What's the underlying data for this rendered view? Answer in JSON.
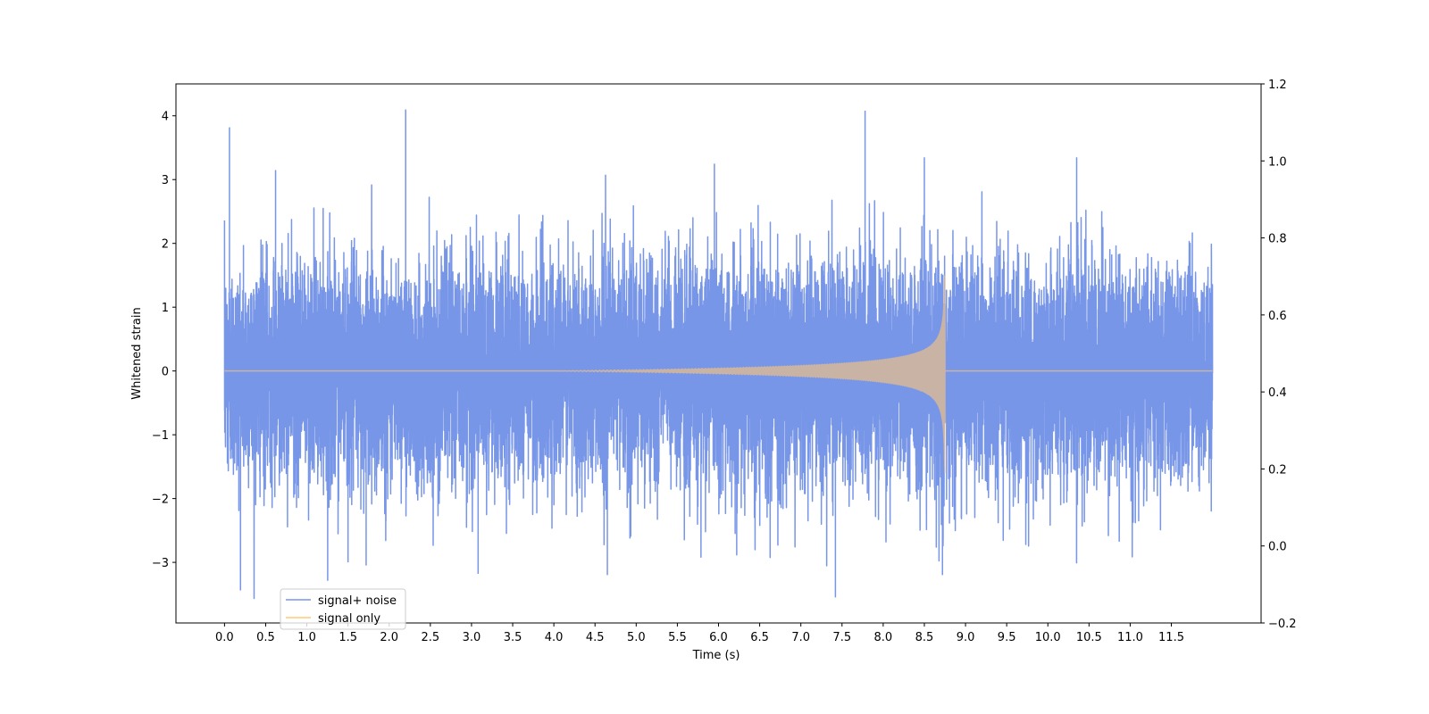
{
  "chart_data": {
    "type": "line",
    "title": "",
    "xlabel": "Time (s)",
    "ylabel": "Whitened strain",
    "xlim": [
      -0.59,
      12.59
    ],
    "ylim": [
      -3.95,
      4.5
    ],
    "y2lim": [
      -0.2,
      1.2
    ],
    "x_ticks": [
      "0.0",
      "0.5",
      "1.0",
      "1.5",
      "2.0",
      "2.5",
      "3.0",
      "3.5",
      "4.0",
      "4.5",
      "5.0",
      "5.5",
      "6.0",
      "6.5",
      "7.0",
      "7.5",
      "8.0",
      "8.5",
      "9.0",
      "9.5",
      "10.0",
      "10.5",
      "11.0",
      "11.5"
    ],
    "y_ticks": [
      "−3",
      "−2",
      "−1",
      "0",
      "1",
      "2",
      "3",
      "4"
    ],
    "y2_ticks": [
      "−0.2",
      "0.0",
      "0.2",
      "0.4",
      "0.6",
      "0.8",
      "1.0",
      "1.2"
    ],
    "grid": false,
    "legend_position": "lower-left",
    "series": [
      {
        "name": "signal+ noise",
        "color": "#7896e8",
        "x_range": [
          0.0,
          12.0
        ],
        "noise_std": 0.85,
        "extremes": [
          {
            "x": 0.06,
            "y": 3.82
          },
          {
            "x": 0.62,
            "y": 3.15
          },
          {
            "x": 1.5,
            "y": -3.0
          },
          {
            "x": 1.72,
            "y": -3.05
          },
          {
            "x": 2.2,
            "y": 4.1
          },
          {
            "x": 3.08,
            "y": -3.18
          },
          {
            "x": 4.65,
            "y": -3.2
          },
          {
            "x": 5.95,
            "y": 3.25
          },
          {
            "x": 7.42,
            "y": -3.55
          },
          {
            "x": 7.78,
            "y": 4.08
          },
          {
            "x": 8.5,
            "y": 3.35
          },
          {
            "x": 8.72,
            "y": -3.2
          },
          {
            "x": 10.35,
            "y": 3.35
          }
        ]
      },
      {
        "name": "signal only",
        "color": "#ffc777",
        "x_range": [
          0.0,
          12.0
        ],
        "chirp_start": 4.0,
        "merger_time": 8.75,
        "peak_amplitude": 1.5,
        "min_amplitude": -1.6
      }
    ]
  }
}
